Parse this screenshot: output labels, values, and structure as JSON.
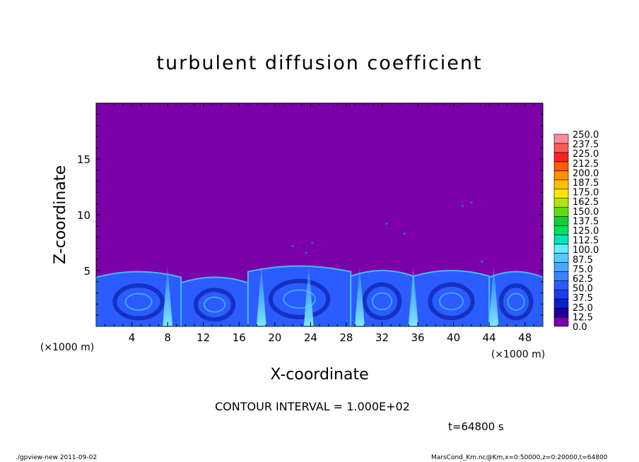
{
  "title": "turbulent diffusion coefficient",
  "contour_note": "CONTOUR INTERVAL = 1.000E+02",
  "time_note": "t=64800 s",
  "footer_left": "./gpview-new   2011-09-02",
  "footer_right": "MarsCond_Km.nc@Km,x=0:50000,z=0:20000,t=64800",
  "colors": {
    "background_field": "#7b00a8",
    "flow_dark": "#0d1fa8",
    "flow_mid": "#2a5cff",
    "flow_light": "#48b8ff",
    "flow_cyan": "#7fe8ff"
  },
  "chart_data": {
    "type": "heatmap",
    "title": "turbulent diffusion coefficient",
    "xlabel": "X-coordinate",
    "ylabel": "Z-coordinate",
    "x_unit": "(×1000 m)",
    "y_unit": "(×1000 m)",
    "xlim": [
      0,
      50
    ],
    "ylim": [
      0,
      20
    ],
    "xticks": [
      4,
      8,
      12,
      16,
      20,
      24,
      28,
      32,
      36,
      40,
      44,
      48
    ],
    "yticks": [
      5,
      10,
      15
    ],
    "turbulent_layer_top_km": 5,
    "cells": [
      {
        "x0": 0,
        "x1": 9.5,
        "top": 4.9
      },
      {
        "x0": 9.5,
        "x1": 17,
        "top": 4.4
      },
      {
        "x0": 17,
        "x1": 28.5,
        "top": 5.4
      },
      {
        "x0": 28.5,
        "x1": 35.5,
        "top": 5.0
      },
      {
        "x0": 35.5,
        "x1": 44,
        "top": 5.0
      },
      {
        "x0": 44,
        "x1": 50,
        "top": 4.9
      }
    ],
    "plumes": [
      8,
      18.5,
      23.8,
      29.5,
      35.5,
      44.5
    ],
    "colorbar": {
      "min": 0.0,
      "max": 250.0,
      "step": 12.5,
      "labels": [
        "250.0",
        "237.5",
        "225.0",
        "212.5",
        "200.0",
        "187.5",
        "175.0",
        "162.5",
        "150.0",
        "137.5",
        "125.0",
        "112.5",
        "100.0",
        "87.5",
        "75.0",
        "62.5",
        "50.0",
        "37.5",
        "25.0",
        "12.5",
        "0.0"
      ],
      "colors": [
        "#7b00a8",
        "#1a0096",
        "#0d1fc8",
        "#1a3cf0",
        "#2a5cff",
        "#3a82ff",
        "#48a8ff",
        "#55ccff",
        "#62ecff",
        "#00e6b4",
        "#00e060",
        "#10d030",
        "#60dc10",
        "#b0e600",
        "#ffe600",
        "#ffc000",
        "#ff9000",
        "#ff5a00",
        "#ff2020",
        "#ff5a5a",
        "#ff8a9a"
      ]
    }
  }
}
